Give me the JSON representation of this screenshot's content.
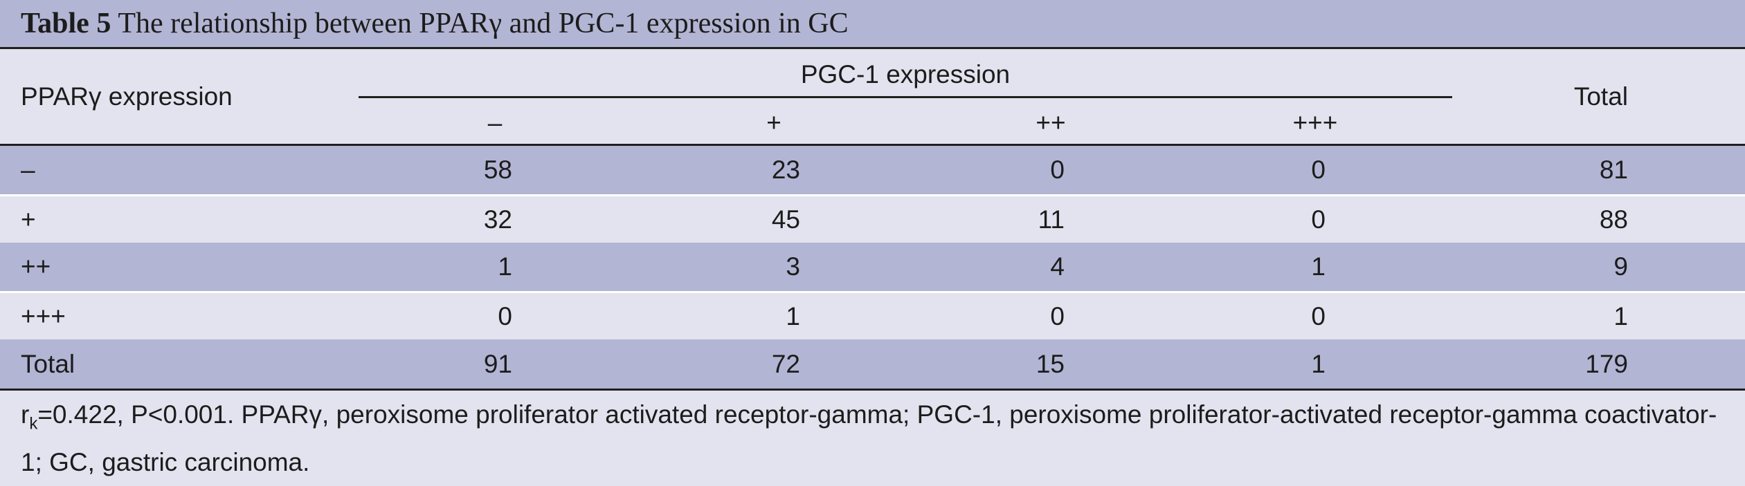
{
  "caption": {
    "label": "Table 5",
    "text": "The relationship between PPARγ and PGC-1 expression in GC"
  },
  "header": {
    "row_label": "PPARγ expression",
    "group": "PGC-1 expression",
    "subcolumns": [
      "–",
      "+",
      "++",
      "+++"
    ],
    "total": "Total"
  },
  "rows": [
    {
      "label": "–",
      "values": [
        "58",
        "23",
        "0",
        "0"
      ],
      "total": "81"
    },
    {
      "label": "+",
      "values": [
        "32",
        "45",
        "11",
        "0"
      ],
      "total": "88"
    },
    {
      "label": "++",
      "values": [
        "1",
        "3",
        "4",
        "1"
      ],
      "total": "9"
    },
    {
      "label": "+++",
      "values": [
        "0",
        "1",
        "0",
        "0"
      ],
      "total": "1"
    },
    {
      "label": "Total",
      "values": [
        "91",
        "72",
        "15",
        "1"
      ],
      "total": "179"
    }
  ],
  "footnote": {
    "r_symbol": "r",
    "r_subscript": "k",
    "text": "=0.422, P<0.001. PPARγ, peroxisome proliferator activated receptor-gamma; PGC-1, peroxisome proliferator-activated receptor-gamma coactivator-1; GC, gastric carcinoma."
  },
  "colors": {
    "shade": "#b2b5d3",
    "background": "#e2e3ee",
    "rule": "#1f1f1f"
  }
}
